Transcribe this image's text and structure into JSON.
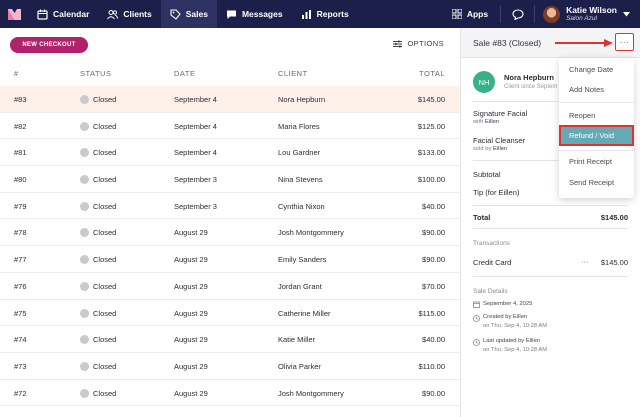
{
  "nav": {
    "items": [
      {
        "label": "Calendar",
        "icon": "calendar-icon"
      },
      {
        "label": "Clients",
        "icon": "users-icon"
      },
      {
        "label": "Sales",
        "icon": "tag-icon",
        "active": true
      },
      {
        "label": "Messages",
        "icon": "chat-bubble-icon"
      },
      {
        "label": "Reports",
        "icon": "bar-chart-icon"
      }
    ],
    "apps_label": "Apps",
    "user_name": "Katie Wilson",
    "user_location": "Salon Azul"
  },
  "toolbar": {
    "new_checkout_label": "NEW CHECKOUT",
    "options_label": "OPTIONS"
  },
  "table": {
    "headers": {
      "num": "#",
      "status": "STATUS",
      "date": "DATE",
      "client": "CLIENT",
      "total": "TOTAL"
    },
    "rows": [
      {
        "num": "#83",
        "status": "Closed",
        "date": "September 4",
        "client": "Nora Hepburn",
        "total": "$145.00"
      },
      {
        "num": "#82",
        "status": "Closed",
        "date": "September 4",
        "client": "Maria Flores",
        "total": "$125.00"
      },
      {
        "num": "#81",
        "status": "Closed",
        "date": "September 4",
        "client": "Lou Gardner",
        "total": "$133.00"
      },
      {
        "num": "#80",
        "status": "Closed",
        "date": "September 3",
        "client": "Nina Stevens",
        "total": "$100.00"
      },
      {
        "num": "#79",
        "status": "Closed",
        "date": "September 3",
        "client": "Cynthia Nixon",
        "total": "$40.00"
      },
      {
        "num": "#78",
        "status": "Closed",
        "date": "August 29",
        "client": "Josh Montgommery",
        "total": "$90.00"
      },
      {
        "num": "#77",
        "status": "Closed",
        "date": "August 29",
        "client": "Emily Sanders",
        "total": "$90.00"
      },
      {
        "num": "#76",
        "status": "Closed",
        "date": "August 29",
        "client": "Jordan Grant",
        "total": "$70.00"
      },
      {
        "num": "#75",
        "status": "Closed",
        "date": "August 29",
        "client": "Catherine Miller",
        "total": "$115.00"
      },
      {
        "num": "#74",
        "status": "Closed",
        "date": "August 29",
        "client": "Katie Miller",
        "total": "$40.00"
      },
      {
        "num": "#73",
        "status": "Closed",
        "date": "August 29",
        "client": "Olivia Parker",
        "total": "$110.00"
      },
      {
        "num": "#72",
        "status": "Closed",
        "date": "August 29",
        "client": "Josh Montgommery",
        "total": "$90.00"
      }
    ]
  },
  "panel": {
    "title": "Sale #83 (Closed)",
    "more_label": "···",
    "initials": "NH",
    "customer_name": "Nora Hepburn",
    "customer_since": "Client since Septem",
    "item1_name": "Signature Facial",
    "item1_with": "with",
    "item1_staff": "Eillen",
    "item2_name": "Facial Cleanser",
    "item2_sold": "sold by",
    "item2_staff": "Eillen",
    "subtotal_label": "Subtotal",
    "tip_label": "Tip (for Eillen)",
    "total_label": "Total",
    "total_value": "$145.00",
    "transactions_label": "Transactions",
    "payment_method": "Credit Card",
    "payment_more": "···",
    "payment_amount": "$145.00",
    "sale_details_label": "Sale Details",
    "sale_date": "September 4, 2025",
    "created_by": "Created by Eillen",
    "created_on": "on Thu, Sep 4, 10:28 AM",
    "updated_by": "Last updated by Eillen",
    "updated_on": "on Thu, Sep 4, 10:28 AM"
  },
  "menu": {
    "items": [
      "Change Date",
      "Add Notes",
      "Reopen",
      "Refund / Void",
      "Print Receipt",
      "Send Receipt"
    ]
  },
  "colors": {
    "topbar": "#1c1f4a",
    "brand": "#b1226c",
    "highlight": "#64a9b4",
    "annotation": "#e0332b",
    "avatar_green": "#3ab089"
  }
}
